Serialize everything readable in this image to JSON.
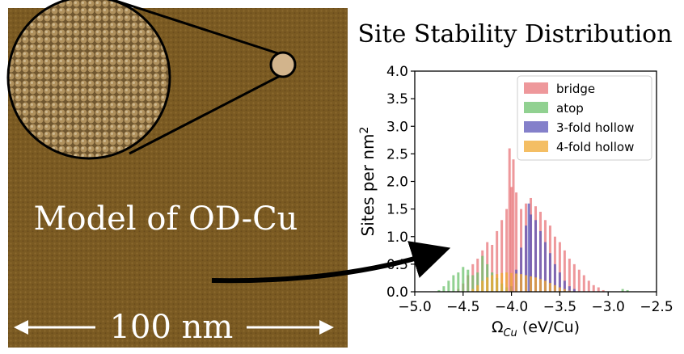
{
  "model_panel": {
    "label": "Model of OD-Cu",
    "scale_bar_label": "100 nm",
    "surface_color": "#7a5a22",
    "particle_color": "#c9a56a"
  },
  "chart_data": {
    "type": "histogram",
    "title": "Site Stability Distribution",
    "xlabel": "Ω_Cu (eV/Cu)",
    "xlabel_main": "Ω",
    "xlabel_sub": "Cu",
    "xlabel_unit": " (eV/Cu)",
    "ylabel": "Sites per nm²",
    "xlim": [
      -5.0,
      -2.5
    ],
    "ylim": [
      0.0,
      4.0
    ],
    "xticks": [
      "−5.0",
      "−4.5",
      "−4.0",
      "−3.5",
      "−3.0",
      "−2.5"
    ],
    "xtick_values": [
      -5.0,
      -4.5,
      -4.0,
      -3.5,
      -3.0,
      -2.5
    ],
    "yticks": [
      "0.0",
      "0.5",
      "1.0",
      "1.5",
      "2.0",
      "2.5",
      "3.0",
      "3.5",
      "4.0"
    ],
    "ytick_values": [
      0.0,
      0.5,
      1.0,
      1.5,
      2.0,
      2.5,
      3.0,
      3.5,
      4.0
    ],
    "legend_position": "top-right",
    "bin_width": 0.025,
    "series": [
      {
        "name": "bridge",
        "color": "#e8767a",
        "x": [
          -4.55,
          -4.5,
          -4.45,
          -4.4,
          -4.35,
          -4.3,
          -4.25,
          -4.2,
          -4.15,
          -4.1,
          -4.05,
          -4.02,
          -4.0,
          -3.98,
          -3.95,
          -3.9,
          -3.85,
          -3.8,
          -3.75,
          -3.7,
          -3.65,
          -3.6,
          -3.55,
          -3.5,
          -3.45,
          -3.4,
          -3.35,
          -3.3,
          -3.25,
          -3.2,
          -3.15,
          -3.1,
          -3.05
        ],
        "values": [
          0.05,
          0.15,
          0.3,
          0.5,
          0.6,
          0.75,
          0.9,
          0.85,
          1.1,
          1.3,
          1.5,
          2.6,
          1.9,
          2.4,
          1.8,
          1.5,
          1.6,
          1.7,
          1.55,
          1.45,
          1.3,
          1.2,
          1.0,
          0.9,
          0.75,
          0.6,
          0.5,
          0.4,
          0.3,
          0.2,
          0.12,
          0.08,
          0.03
        ]
      },
      {
        "name": "atop",
        "color": "#6cc26c",
        "x": [
          -4.75,
          -4.7,
          -4.65,
          -4.6,
          -4.55,
          -4.5,
          -4.45,
          -4.4,
          -4.35,
          -4.3,
          -4.25,
          -4.2,
          -4.15,
          -4.1,
          -4.05,
          -4.0,
          -2.85,
          -2.8
        ],
        "values": [
          0.03,
          0.1,
          0.2,
          0.3,
          0.35,
          0.45,
          0.4,
          0.3,
          0.35,
          0.65,
          0.5,
          0.35,
          0.25,
          0.15,
          0.08,
          0.03,
          0.05,
          0.03
        ]
      },
      {
        "name": "3-fold hollow",
        "color": "#5b55b8",
        "x": [
          -4.0,
          -3.95,
          -3.9,
          -3.85,
          -3.82,
          -3.8,
          -3.75,
          -3.7,
          -3.65,
          -3.6,
          -3.55,
          -3.5,
          -3.45,
          -3.4,
          -3.35
        ],
        "values": [
          0.1,
          0.4,
          0.8,
          1.2,
          1.6,
          1.4,
          1.3,
          1.1,
          0.9,
          0.7,
          0.5,
          0.35,
          0.2,
          0.1,
          0.05
        ]
      },
      {
        "name": "4-fold hollow",
        "color": "#f0a830",
        "x": [
          -4.4,
          -4.35,
          -4.3,
          -4.25,
          -4.2,
          -4.15,
          -4.1,
          -4.05,
          -4.0,
          -3.95,
          -3.9,
          -3.85,
          -3.8,
          -3.75,
          -3.7,
          -3.65,
          -3.6,
          -3.55,
          -3.5,
          -3.45,
          -3.4
        ],
        "values": [
          0.05,
          0.12,
          0.2,
          0.26,
          0.3,
          0.32,
          0.34,
          0.35,
          0.34,
          0.33,
          0.32,
          0.3,
          0.28,
          0.26,
          0.23,
          0.2,
          0.16,
          0.12,
          0.08,
          0.05,
          0.02
        ]
      }
    ]
  }
}
